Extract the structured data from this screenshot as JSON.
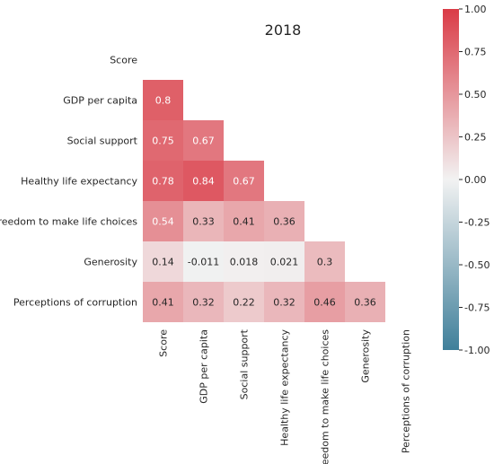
{
  "chart_data": {
    "type": "heatmap",
    "title": "2018",
    "variables": [
      "Score",
      "GDP per capita",
      "Social support",
      "Healthy life expectancy",
      "Freedom to make life choices",
      "Generosity",
      "Perceptions of corruption"
    ],
    "mask": "upper-triangle-including-diagonal",
    "cells": [
      {
        "row": "GDP per capita",
        "col": "Score",
        "value": 0.8,
        "label": "0.8"
      },
      {
        "row": "Social support",
        "col": "Score",
        "value": 0.75,
        "label": "0.75"
      },
      {
        "row": "Social support",
        "col": "GDP per capita",
        "value": 0.67,
        "label": "0.67"
      },
      {
        "row": "Healthy life expectancy",
        "col": "Score",
        "value": 0.78,
        "label": "0.78"
      },
      {
        "row": "Healthy life expectancy",
        "col": "GDP per capita",
        "value": 0.84,
        "label": "0.84"
      },
      {
        "row": "Healthy life expectancy",
        "col": "Social support",
        "value": 0.67,
        "label": "0.67"
      },
      {
        "row": "Freedom to make life choices",
        "col": "Score",
        "value": 0.54,
        "label": "0.54"
      },
      {
        "row": "Freedom to make life choices",
        "col": "GDP per capita",
        "value": 0.33,
        "label": "0.33"
      },
      {
        "row": "Freedom to make life choices",
        "col": "Social support",
        "value": 0.41,
        "label": "0.41"
      },
      {
        "row": "Freedom to make life choices",
        "col": "Healthy life expectancy",
        "value": 0.36,
        "label": "0.36"
      },
      {
        "row": "Generosity",
        "col": "Score",
        "value": 0.14,
        "label": "0.14"
      },
      {
        "row": "Generosity",
        "col": "GDP per capita",
        "value": -0.011,
        "label": "-0.011"
      },
      {
        "row": "Generosity",
        "col": "Social support",
        "value": 0.018,
        "label": "0.018"
      },
      {
        "row": "Generosity",
        "col": "Healthy life expectancy",
        "value": 0.021,
        "label": "0.021"
      },
      {
        "row": "Generosity",
        "col": "Freedom to make life choices",
        "value": 0.3,
        "label": "0.3"
      },
      {
        "row": "Perceptions of corruption",
        "col": "Score",
        "value": 0.41,
        "label": "0.41"
      },
      {
        "row": "Perceptions of corruption",
        "col": "GDP per capita",
        "value": 0.32,
        "label": "0.32"
      },
      {
        "row": "Perceptions of corruption",
        "col": "Social support",
        "value": 0.22,
        "label": "0.22"
      },
      {
        "row": "Perceptions of corruption",
        "col": "Healthy life expectancy",
        "value": 0.32,
        "label": "0.32"
      },
      {
        "row": "Perceptions of corruption",
        "col": "Freedom to make life choices",
        "value": 0.46,
        "label": "0.46"
      },
      {
        "row": "Perceptions of corruption",
        "col": "Generosity",
        "value": 0.36,
        "label": "0.36"
      }
    ],
    "colorbar": {
      "range": [
        -1.0,
        1.0
      ],
      "ticks": [
        "1.00",
        "0.75",
        "0.50",
        "0.25",
        "0.00",
        "-0.25",
        "-0.50",
        "-0.75",
        "-1.00"
      ],
      "tick_values": [
        1.0,
        0.75,
        0.5,
        0.25,
        0.0,
        -0.25,
        -0.5,
        -0.75,
        -1.0
      ],
      "placement": "right"
    },
    "colors": {
      "negative": "#3f7f9a",
      "neutral": "#f2f2f2",
      "positive": "#da3b46",
      "high_value_text": "#ffffff",
      "low_value_text": "#262626"
    },
    "grid": false
  }
}
